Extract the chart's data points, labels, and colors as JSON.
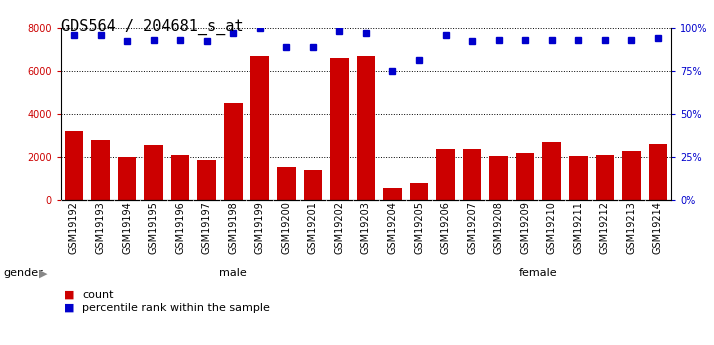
{
  "title": "GDS564 / 204681_s_at",
  "samples": [
    "GSM19192",
    "GSM19193",
    "GSM19194",
    "GSM19195",
    "GSM19196",
    "GSM19197",
    "GSM19198",
    "GSM19199",
    "GSM19200",
    "GSM19201",
    "GSM19202",
    "GSM19203",
    "GSM19204",
    "GSM19205",
    "GSM19206",
    "GSM19207",
    "GSM19208",
    "GSM19209",
    "GSM19210",
    "GSM19211",
    "GSM19212",
    "GSM19213",
    "GSM19214"
  ],
  "counts": [
    3200,
    2800,
    2000,
    2550,
    2100,
    1850,
    4500,
    6700,
    1550,
    1400,
    6600,
    6700,
    550,
    800,
    2350,
    2350,
    2050,
    2200,
    2700,
    2050,
    2100,
    2300,
    2600
  ],
  "percentile": [
    96,
    96,
    92,
    93,
    93,
    92,
    97,
    100,
    89,
    89,
    98,
    97,
    75,
    81,
    96,
    92,
    93,
    93,
    93,
    93,
    93,
    93,
    94
  ],
  "male_count": 13,
  "female_count": 10,
  "ylim_left": [
    0,
    8000
  ],
  "ylim_right": [
    0,
    100
  ],
  "yticks_left": [
    0,
    2000,
    4000,
    6000,
    8000
  ],
  "yticks_right": [
    0,
    25,
    50,
    75,
    100
  ],
  "bar_color": "#cc0000",
  "dot_color": "#0000cc",
  "male_color": "#ccffcc",
  "female_color": "#55dd55",
  "xtick_bg_color": "#cccccc",
  "title_fontsize": 11,
  "tick_fontsize": 7,
  "label_fontsize": 8,
  "gender_label": "gender"
}
